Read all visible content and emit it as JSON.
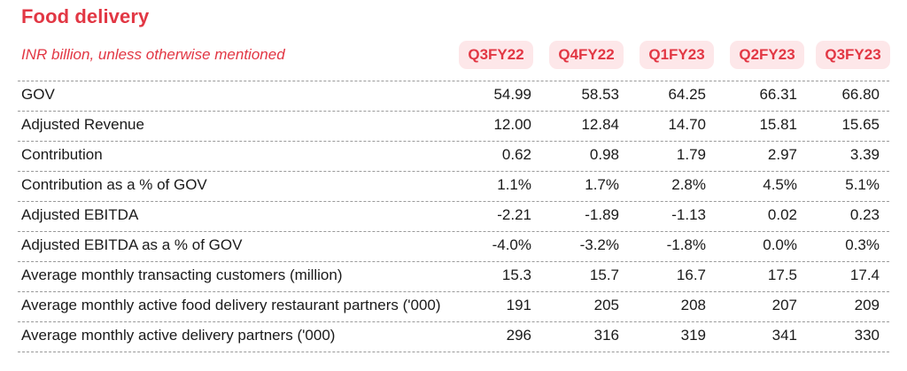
{
  "header": {
    "title": "Food delivery",
    "subtitle": "INR billion, unless otherwise mentioned"
  },
  "columns": [
    "Q3FY22",
    "Q4FY22",
    "Q1FY23",
    "Q2FY23",
    "Q3FY23"
  ],
  "rows": [
    {
      "label": "GOV",
      "values": [
        "54.99",
        "58.53",
        "64.25",
        "66.31",
        "66.80"
      ]
    },
    {
      "label": "Adjusted Revenue",
      "values": [
        "12.00",
        "12.84",
        "14.70",
        "15.81",
        "15.65"
      ]
    },
    {
      "label": "Contribution",
      "values": [
        "0.62",
        "0.98",
        "1.79",
        "2.97",
        "3.39"
      ]
    },
    {
      "label": "Contribution as a % of GOV",
      "values": [
        "1.1%",
        "1.7%",
        "2.8%",
        "4.5%",
        "5.1%"
      ]
    },
    {
      "label": "Adjusted EBITDA",
      "values": [
        "-2.21",
        "-1.89",
        "-1.13",
        "0.02",
        "0.23"
      ]
    },
    {
      "label": "Adjusted EBITDA as a % of GOV",
      "values": [
        "-4.0%",
        "-3.2%",
        "-1.8%",
        "0.0%",
        "0.3%"
      ]
    },
    {
      "label": "Average monthly transacting customers (million)",
      "values": [
        "15.3",
        "15.7",
        "16.7",
        "17.5",
        "17.4"
      ]
    },
    {
      "label": "Average monthly active food delivery restaurant partners ('000)",
      "values": [
        "191",
        "205",
        "208",
        "207",
        "209"
      ]
    },
    {
      "label": "Average monthly active delivery partners ('000)",
      "values": [
        "296",
        "316",
        "319",
        "341",
        "330"
      ]
    }
  ],
  "colors": {
    "accent": "#e23744",
    "header_bg": "#fde7e9",
    "text": "#1a1a1a",
    "rule": "#9a9a9a"
  }
}
